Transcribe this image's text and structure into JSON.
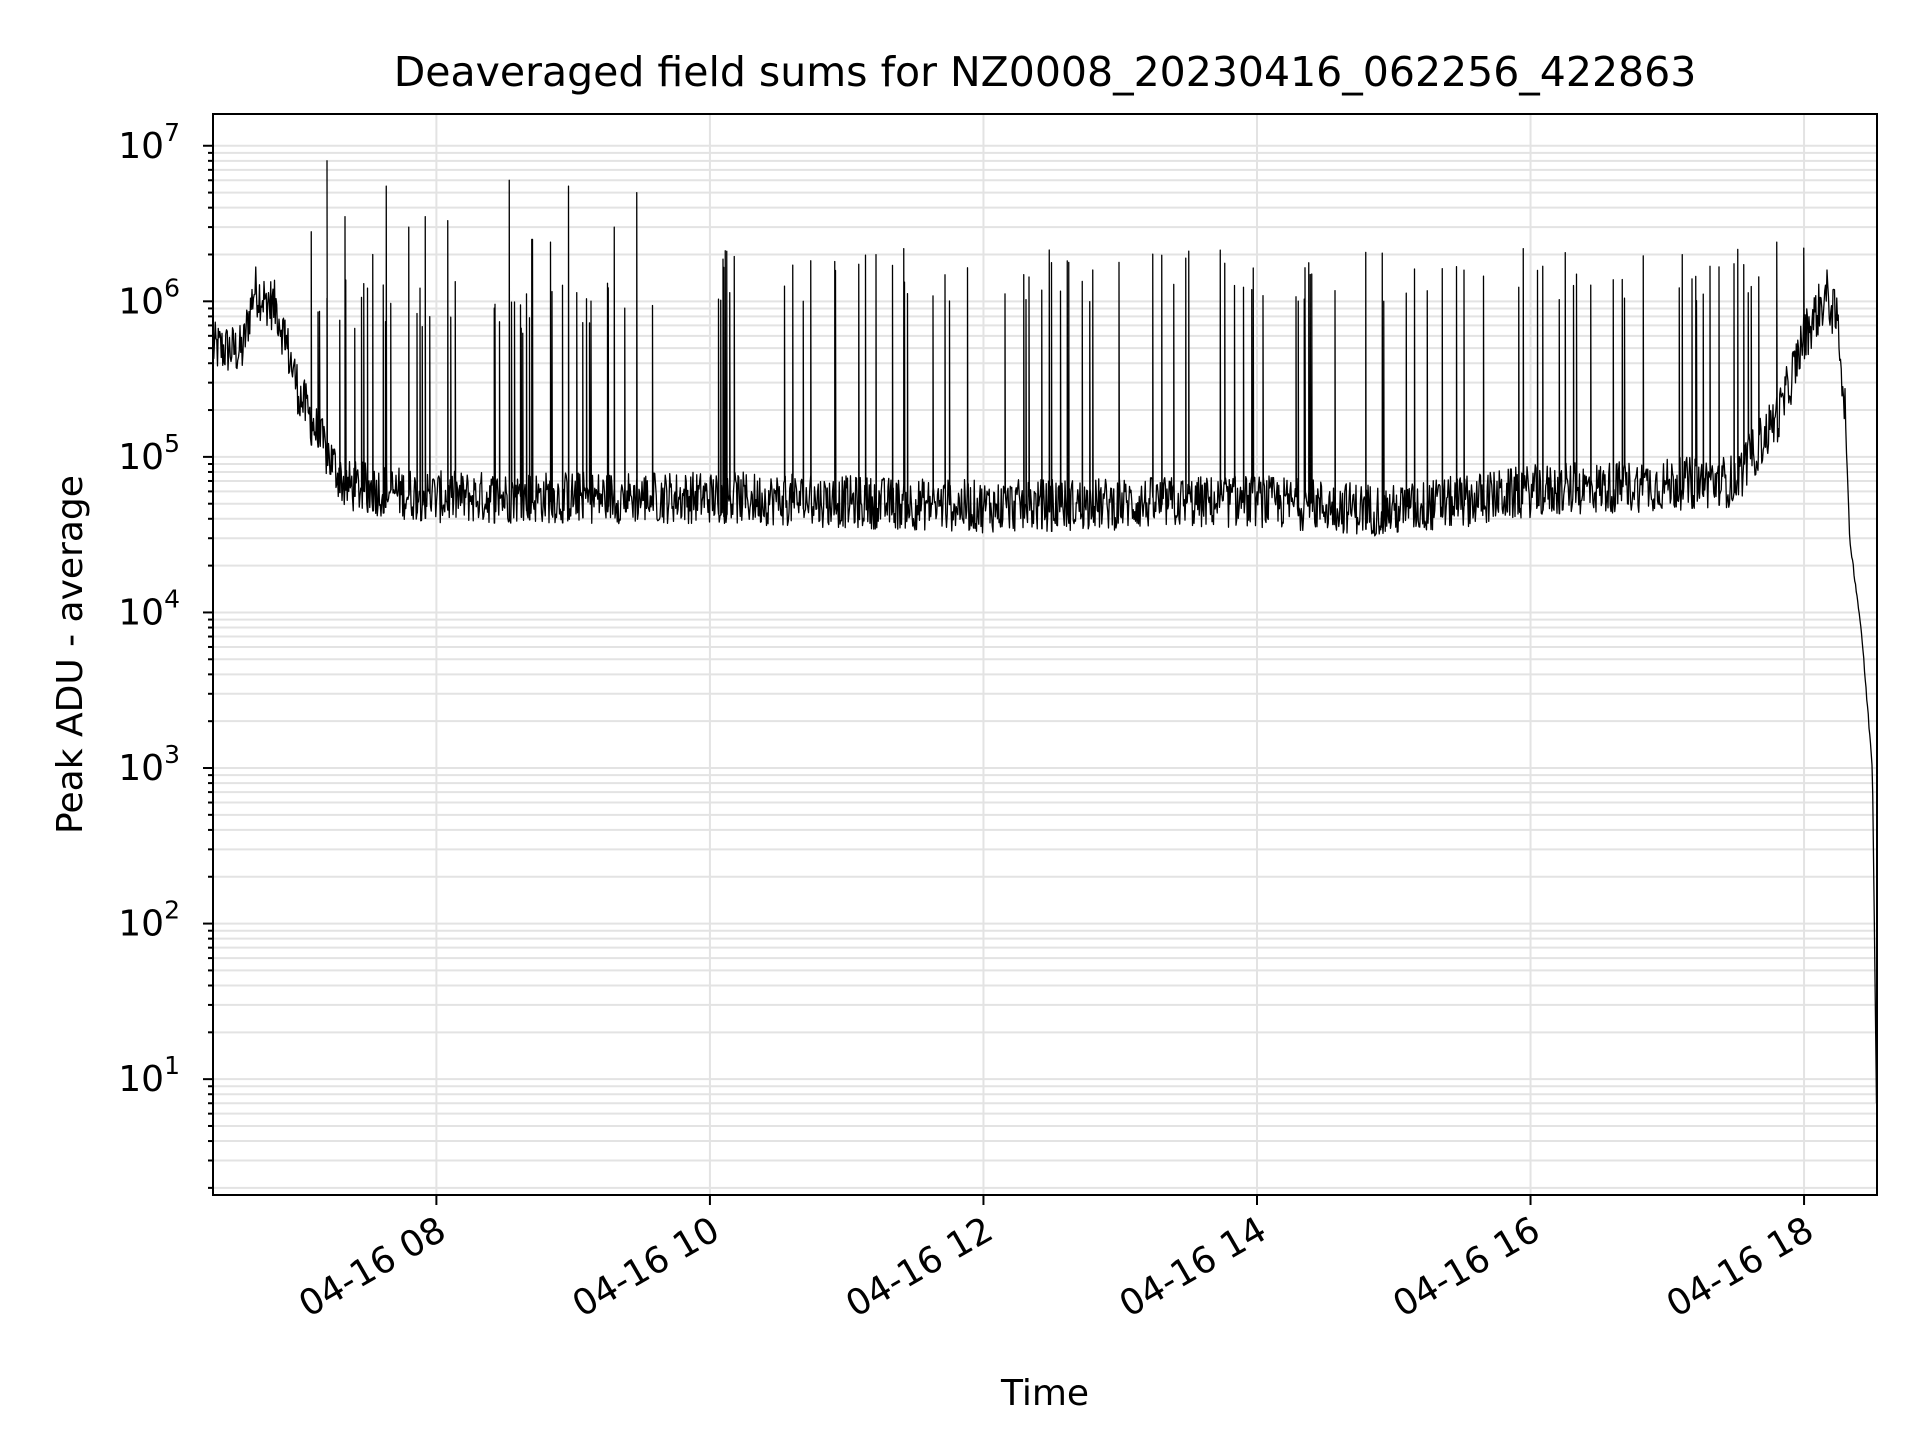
{
  "chart_data": {
    "type": "line",
    "title": "Deaveraged field sums for NZ0008_20230416_062256_422863",
    "xlabel": "Time",
    "ylabel": "Peak ADU - average",
    "yscale": "log",
    "ylim": [
      1.8,
      16000000
    ],
    "xlim": [
      "2023-04-16 06:22",
      "2023-04-16 18:32"
    ],
    "grid": true,
    "line_color": "#000000",
    "x_ticks": [
      {
        "label": "04-16 08",
        "time": "2023-04-16 08:00"
      },
      {
        "label": "04-16 10",
        "time": "2023-04-16 10:00"
      },
      {
        "label": "04-16 12",
        "time": "2023-04-16 12:00"
      },
      {
        "label": "04-16 14",
        "time": "2023-04-16 14:00"
      },
      {
        "label": "04-16 16",
        "time": "2023-04-16 16:00"
      },
      {
        "label": "04-16 18",
        "time": "2023-04-16 18:00"
      }
    ],
    "y_ticks": [
      {
        "base": "10",
        "exp": "1",
        "value": 10
      },
      {
        "base": "10",
        "exp": "2",
        "value": 100
      },
      {
        "base": "10",
        "exp": "3",
        "value": 1000
      },
      {
        "base": "10",
        "exp": "4",
        "value": 10000
      },
      {
        "base": "10",
        "exp": "5",
        "value": 100000
      },
      {
        "base": "10",
        "exp": "6",
        "value": 1000000
      },
      {
        "base": "10",
        "exp": "7",
        "value": 10000000
      }
    ],
    "baseline": [
      {
        "t": "2023-04-16 06:22",
        "y": 500000
      },
      {
        "t": "2023-04-16 06:35",
        "y": 480000
      },
      {
        "t": "2023-04-16 06:40",
        "y": 1200000
      },
      {
        "t": "2023-04-16 06:50",
        "y": 900000
      },
      {
        "t": "2023-04-16 07:00",
        "y": 250000
      },
      {
        "t": "2023-04-16 07:10",
        "y": 120000
      },
      {
        "t": "2023-04-16 07:20",
        "y": 65000
      },
      {
        "t": "2023-04-16 08:00",
        "y": 55000
      },
      {
        "t": "2023-04-16 10:00",
        "y": 55000
      },
      {
        "t": "2023-04-16 12:00",
        "y": 48000
      },
      {
        "t": "2023-04-16 14:00",
        "y": 52000
      },
      {
        "t": "2023-04-16 15:00",
        "y": 45000
      },
      {
        "t": "2023-04-16 16:00",
        "y": 60000
      },
      {
        "t": "2023-04-16 17:30",
        "y": 70000
      },
      {
        "t": "2023-04-16 17:50",
        "y": 200000
      },
      {
        "t": "2023-04-16 18:00",
        "y": 600000
      },
      {
        "t": "2023-04-16 18:10",
        "y": 1100000
      },
      {
        "t": "2023-04-16 18:15",
        "y": 700000
      },
      {
        "t": "2023-04-16 18:18",
        "y": 200000
      },
      {
        "t": "2023-04-16 18:20",
        "y": 30000
      },
      {
        "t": "2023-04-16 18:25",
        "y": 8000
      },
      {
        "t": "2023-04-16 18:30",
        "y": 1000
      },
      {
        "t": "2023-04-16 18:32",
        "y": 4
      }
    ],
    "peaks": [
      {
        "t": "2023-04-16 07:05",
        "y": 2800000
      },
      {
        "t": "2023-04-16 07:12",
        "y": 8000000
      },
      {
        "t": "2023-04-16 07:20",
        "y": 3500000
      },
      {
        "t": "2023-04-16 07:32",
        "y": 2000000
      },
      {
        "t": "2023-04-16 07:38",
        "y": 5500000
      },
      {
        "t": "2023-04-16 07:48",
        "y": 3000000
      },
      {
        "t": "2023-04-16 07:55",
        "y": 3500000
      },
      {
        "t": "2023-04-16 08:05",
        "y": 3300000
      },
      {
        "t": "2023-04-16 08:32",
        "y": 6000000
      },
      {
        "t": "2023-04-16 08:42",
        "y": 2500000
      },
      {
        "t": "2023-04-16 08:50",
        "y": 2400000
      },
      {
        "t": "2023-04-16 08:58",
        "y": 5500000
      },
      {
        "t": "2023-04-16 09:18",
        "y": 3000000
      },
      {
        "t": "2023-04-16 09:28",
        "y": 5000000
      },
      {
        "t": "2023-04-16 13:30",
        "y": 2100000
      },
      {
        "t": "2023-04-16 17:48",
        "y": 2400000
      },
      {
        "t": "2023-04-16 18:00",
        "y": 2200000
      }
    ],
    "spike_band": [
      {
        "from": "2023-04-16 06:45",
        "to": "2023-04-16 09:35",
        "y": 1000000
      },
      {
        "from": "2023-04-16 10:03",
        "to": "2023-04-16 17:55",
        "y": 1600000
      }
    ]
  }
}
